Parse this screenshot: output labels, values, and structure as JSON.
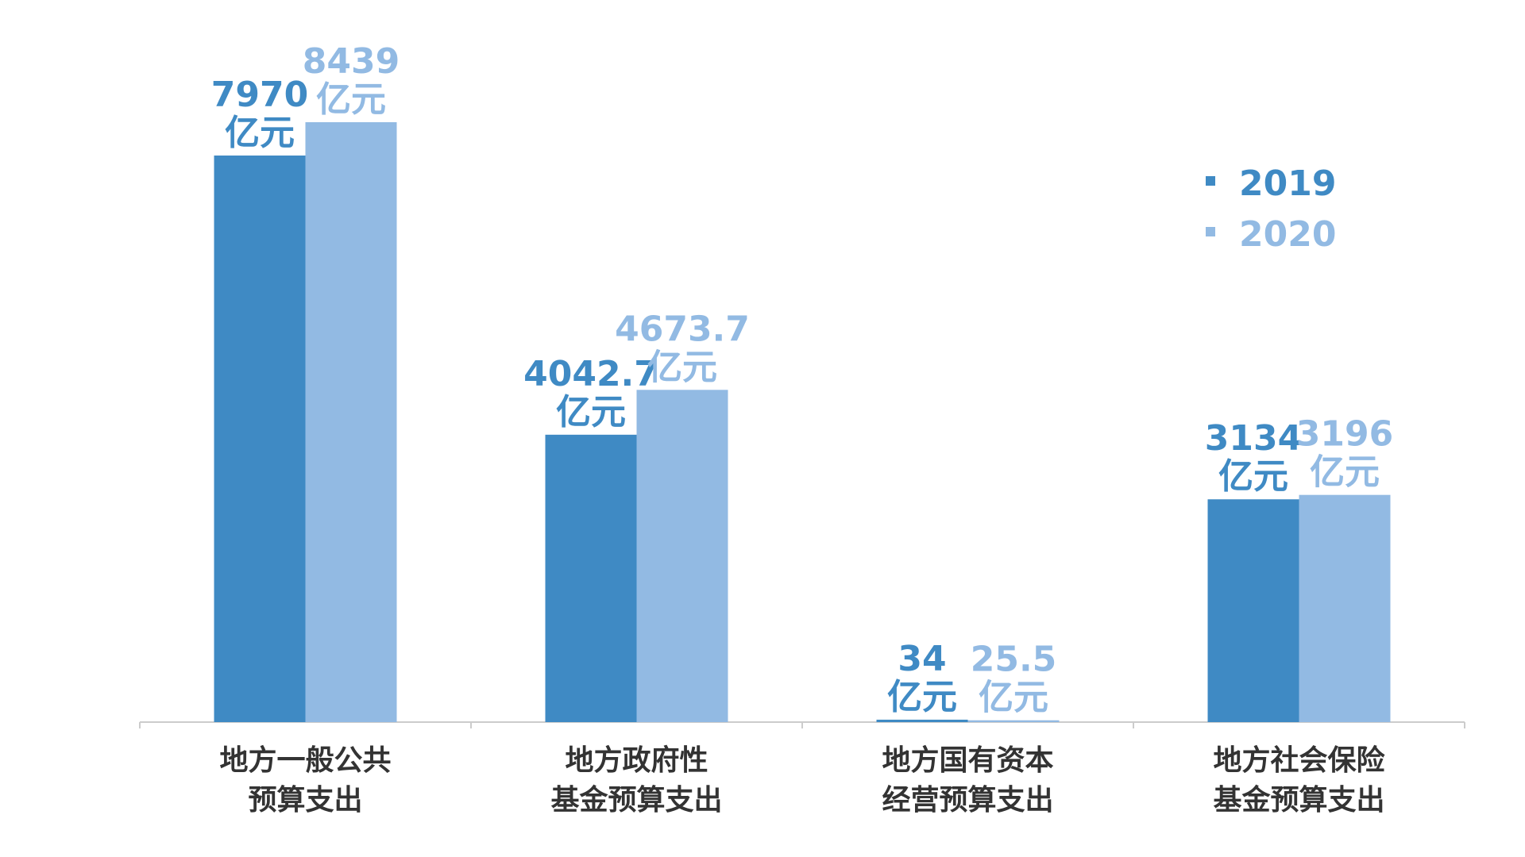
{
  "chart_data": {
    "type": "bar",
    "categories": [
      [
        "地方一般公共",
        "预算支出"
      ],
      [
        "地方政府性",
        "基金预算支出"
      ],
      [
        "地方国有资本",
        "经营预算支出"
      ],
      [
        "地方社会保险",
        "基金预算支出"
      ]
    ],
    "unit": "亿元",
    "series": [
      {
        "name": "2019",
        "color": "#3F8AC4",
        "values": [
          7970,
          4042.7,
          34,
          3134
        ],
        "labels": [
          "7970",
          "4042.7",
          "34",
          "3134"
        ]
      },
      {
        "name": "2020",
        "color": "#92BAE3",
        "values": [
          8439,
          4673.7,
          25.5,
          3196
        ],
        "labels": [
          "8439",
          "4673.7",
          "25.5",
          "3196"
        ]
      }
    ],
    "ylim": [
      0,
      10500
    ],
    "grid": false,
    "legend_position": "right"
  }
}
